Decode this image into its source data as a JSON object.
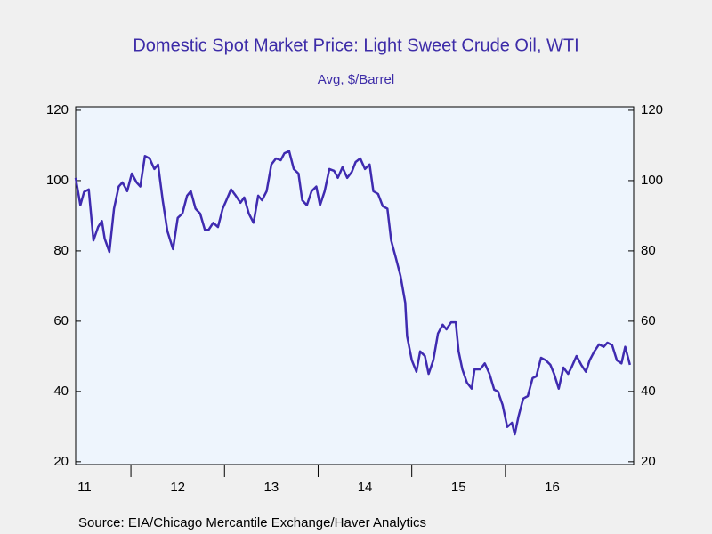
{
  "chart_data": {
    "type": "line",
    "title": "Domestic Spot Market Price: Light Sweet Crude Oil, WTI",
    "subtitle": "Avg, $/Barrel",
    "source": "Source:  EIA/Chicago Mercantile Exchange/Haver Analytics",
    "x": [
      2011.41,
      2011.46,
      2011.5,
      2011.55,
      2011.6,
      2011.65,
      2011.69,
      2011.72,
      2011.77,
      2011.82,
      2011.87,
      2011.91,
      2011.96,
      2012.01,
      2012.06,
      2012.1,
      2012.15,
      2012.2,
      2012.25,
      2012.29,
      2012.34,
      2012.39,
      2012.45,
      2012.5,
      2012.55,
      2012.6,
      2012.64,
      2012.69,
      2012.74,
      2012.79,
      2012.83,
      2012.88,
      2012.93,
      2012.98,
      2013.02,
      2013.07,
      2013.12,
      2013.17,
      2013.21,
      2013.26,
      2013.31,
      2013.36,
      2013.4,
      2013.45,
      2013.5,
      2013.55,
      2013.6,
      2013.64,
      2013.69,
      2013.74,
      2013.79,
      2013.83,
      2013.88,
      2013.93,
      2013.98,
      2014.02,
      2014.07,
      2014.12,
      2014.17,
      2014.21,
      2014.26,
      2014.31,
      2014.36,
      2014.4,
      2014.45,
      2014.5,
      2014.55,
      2014.59,
      2014.64,
      2014.69,
      2014.74,
      2014.78,
      2014.83,
      2014.88,
      2014.93,
      2014.95,
      2015.0,
      2015.05,
      2015.09,
      2015.14,
      2015.18,
      2015.23,
      2015.28,
      2015.33,
      2015.37,
      2015.42,
      2015.47,
      2015.5,
      2015.54,
      2015.59,
      2015.64,
      2015.67,
      2015.73,
      2015.78,
      2015.83,
      2015.88,
      2015.92,
      2015.97,
      2016.02,
      2016.07,
      2016.1,
      2016.14,
      2016.19,
      2016.24,
      2016.29,
      2016.33,
      2016.38,
      2016.43,
      2016.48,
      2016.52,
      2016.57,
      2016.62,
      2016.67,
      2016.71,
      2016.76,
      2016.81,
      2016.86,
      2016.9,
      2016.95,
      2017.0,
      2017.05,
      2017.09,
      2017.14,
      2017.19,
      2017.24,
      2017.28,
      2017.33
    ],
    "series": [
      {
        "name": "WTI",
        "color": "#3f2bb0",
        "values": [
          100.8,
          93,
          96.8,
          97.5,
          83,
          86.8,
          88.5,
          83.5,
          79.7,
          92,
          98.3,
          99.5,
          97,
          102,
          99.5,
          98.3,
          107,
          106.3,
          103.3,
          104.6,
          94.4,
          85.6,
          80.5,
          89.4,
          90.6,
          95.7,
          97,
          92,
          90.6,
          86,
          86,
          88,
          86.8,
          92,
          94.4,
          97.5,
          95.7,
          93.7,
          95.2,
          90.6,
          88,
          95.7,
          94.4,
          97,
          104.6,
          106.3,
          105.8,
          107.8,
          108.4,
          103.3,
          102,
          94.4,
          93,
          97,
          98.3,
          93,
          97,
          103.3,
          102.8,
          100.8,
          103.8,
          100.8,
          102.5,
          105.3,
          106.3,
          103.3,
          104.6,
          97,
          96.2,
          92.7,
          92,
          83,
          78,
          72.9,
          65.3,
          55.7,
          48.9,
          45.6,
          51.4,
          50.1,
          45,
          48.9,
          56.5,
          59,
          57.7,
          59.7,
          59.7,
          51.4,
          46.3,
          42.5,
          40.8,
          46.3,
          46.3,
          48,
          45,
          40.5,
          40,
          36.2,
          29.9,
          31.1,
          27.8,
          32.9,
          38,
          38.7,
          43.8,
          44.3,
          49.6,
          48.9,
          47.6,
          45,
          40.8,
          46.8,
          45,
          47.1,
          50.1,
          47.6,
          45.6,
          48.9,
          51.4,
          53.4,
          52.7,
          53.9,
          53.2,
          48.9,
          48,
          52.7,
          47.6
        ]
      }
    ],
    "xlim": [
      2011.41,
      2017.37
    ],
    "xticks": [
      {
        "value": 2011,
        "label": "11"
      },
      {
        "value": 2012,
        "label": "12"
      },
      {
        "value": 2013,
        "label": "13"
      },
      {
        "value": 2014,
        "label": "14"
      },
      {
        "value": 2015,
        "label": "15"
      },
      {
        "value": 2016,
        "label": "16"
      }
    ],
    "ylim": [
      19.2,
      121
    ],
    "yticks": [
      20,
      40,
      60,
      80,
      100,
      120
    ],
    "grid": false
  }
}
